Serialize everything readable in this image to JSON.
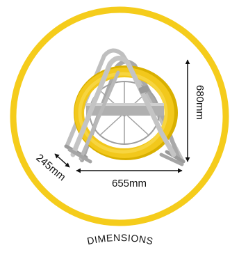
{
  "colors": {
    "ring": "#f5cc1b",
    "frame": "#b5b5b5",
    "frame_dark": "#8c8c8c",
    "coil": "#f2c81c",
    "coil_dark": "#d9b000",
    "arrow": "#111111",
    "background": "#ffffff"
  },
  "dimensions": {
    "height_label": "680mm",
    "width_label": "655mm",
    "depth_label": "245mm"
  },
  "caption": "DIMENSIONS"
}
